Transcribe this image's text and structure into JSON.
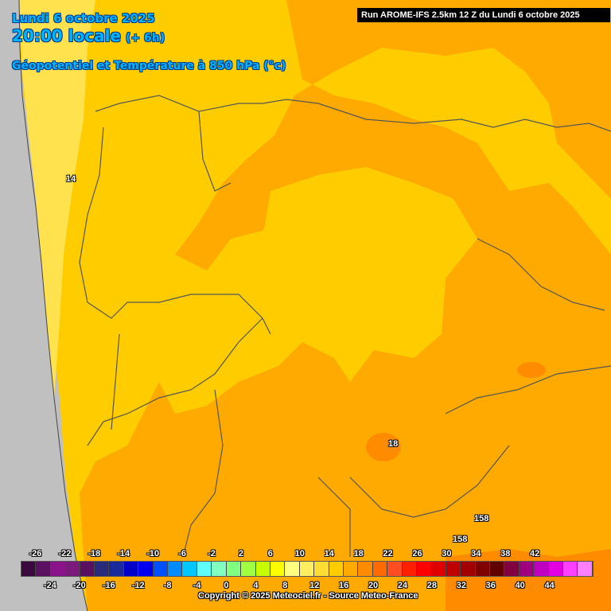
{
  "header": {
    "date": "Lundi 6 octobre 2025",
    "time": "20:00 locale",
    "offset": "(+ 6h)",
    "field": "Géopotentiel et Température à 850 hPa (°c)",
    "run": "Run AROME-IFS 2.5km 12 Z du Lundi 6 octobre 2025"
  },
  "contour_labels": [
    "14",
    "18",
    "158",
    "158"
  ],
  "legend": {
    "top_ticks": [
      "-26",
      "-22",
      "-18",
      "-14",
      "-10",
      "-6",
      "-2",
      "2",
      "6",
      "10",
      "14",
      "18",
      "22",
      "26",
      "30",
      "34",
      "38",
      "42"
    ],
    "bottom_ticks": [
      "-24",
      "-20",
      "-16",
      "-12",
      "-8",
      "-4",
      "0",
      "4",
      "8",
      "12",
      "16",
      "20",
      "24",
      "28",
      "32",
      "36",
      "40",
      "44"
    ],
    "colors": [
      "#3a0a3f",
      "#5c1060",
      "#8a128a",
      "#7a1a7a",
      "#5a1060",
      "#2a2a7a",
      "#1a2a9a",
      "#0000c8",
      "#0000f0",
      "#0050ff",
      "#008cff",
      "#00c8ff",
      "#60ffff",
      "#80ffc0",
      "#80ff80",
      "#a0ff40",
      "#c8ff00",
      "#ffff00",
      "#ffff80",
      "#ffee60",
      "#ffdd33",
      "#ffcc00",
      "#ffaa00",
      "#ff8c00",
      "#ff6a00",
      "#ff4c20",
      "#ff2000",
      "#ff0000",
      "#e00000",
      "#c00000",
      "#a00000",
      "#800000",
      "#600000",
      "#800040",
      "#a00080",
      "#c000c0",
      "#e000e0",
      "#ff40ff",
      "#ff80ff"
    ]
  },
  "copyright": "Copyright © 2025 Meteociel.fr - Source Meteo-France"
}
